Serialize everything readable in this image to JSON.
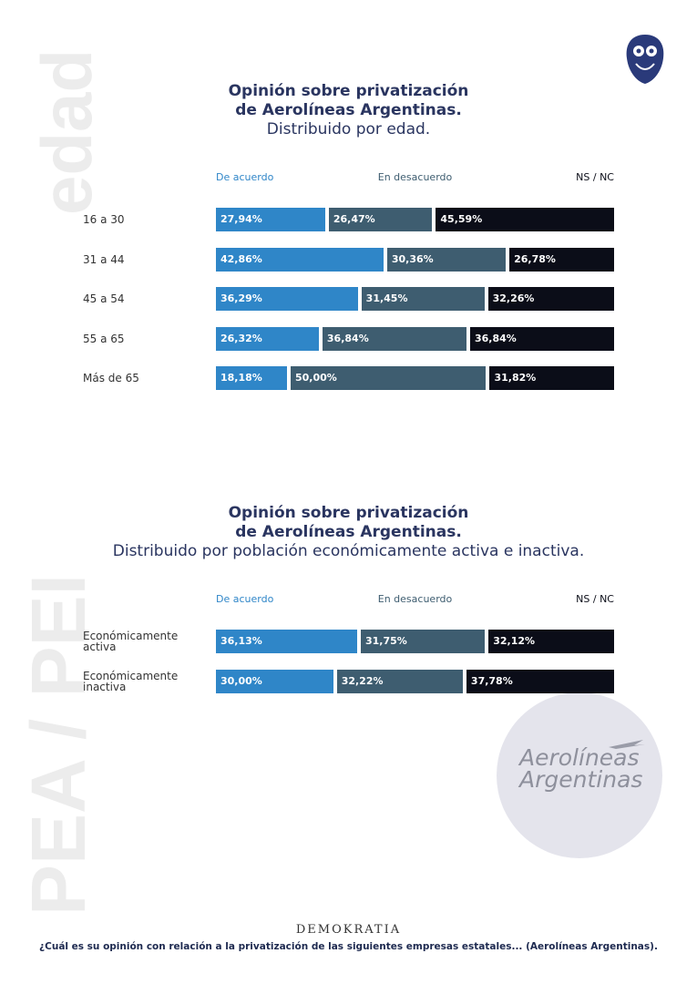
{
  "chart_data": [
    {
      "type": "stacked-bar-horizontal",
      "title": [
        "Opinión sobre privatización",
        "de Aerolíneas Argentinas."
      ],
      "subtitle": "Distribuido por edad.",
      "categories": [
        "16 a 30",
        "31 a 44",
        "45 a 54",
        "55 a 65",
        "Más de 65"
      ],
      "series": [
        {
          "name": "De acuerdo",
          "color": "#2f86c8",
          "values": [
            27.94,
            42.86,
            36.29,
            26.32,
            18.18
          ],
          "value_labels": [
            "27,94%",
            "42,86%",
            "36,29%",
            "26,32%",
            "18,18%"
          ]
        },
        {
          "name": "En desacuerdo",
          "color": "#3e5d70",
          "values": [
            26.47,
            30.36,
            31.45,
            36.84,
            50.0
          ],
          "value_labels": [
            "26,47%",
            "30,36%",
            "31,45%",
            "36,84%",
            "50,00%"
          ]
        },
        {
          "name": "NS / NC",
          "color": "#0b0d18",
          "values": [
            45.59,
            26.78,
            32.26,
            36.84,
            31.82
          ],
          "value_labels": [
            "45,59%",
            "26,78%",
            "32,26%",
            "36,84%",
            "31,82%"
          ]
        }
      ]
    },
    {
      "type": "stacked-bar-horizontal",
      "title": [
        "Opinión sobre privatización",
        "de Aerolíneas Argentinas."
      ],
      "subtitle": "Distribuido por población económicamente activa e inactiva.",
      "categories": [
        "Económicamente activa",
        "Económicamente inactiva"
      ],
      "series": [
        {
          "name": "De acuerdo",
          "color": "#2f86c8",
          "values": [
            36.13,
            30.0
          ],
          "value_labels": [
            "36,13%",
            "30,00%"
          ]
        },
        {
          "name": "En desacuerdo",
          "color": "#3e5d70",
          "values": [
            31.75,
            32.22
          ],
          "value_labels": [
            "31,75%",
            "32,22%"
          ]
        },
        {
          "name": "NS / NC",
          "color": "#0b0d18",
          "values": [
            32.12,
            37.78
          ],
          "value_labels": [
            "32,12%",
            "37,78%"
          ]
        }
      ]
    }
  ],
  "side_labels": [
    "edad",
    "PEA / PEI"
  ],
  "airline_logo": [
    "Aerolíneas",
    "Argentinas"
  ],
  "brand": "DEMOKRATIA",
  "footer": "¿Cuál es su opinión con relación a la privatización de las siguientes empresas estatales... (Aerolíneas Argentinas)."
}
